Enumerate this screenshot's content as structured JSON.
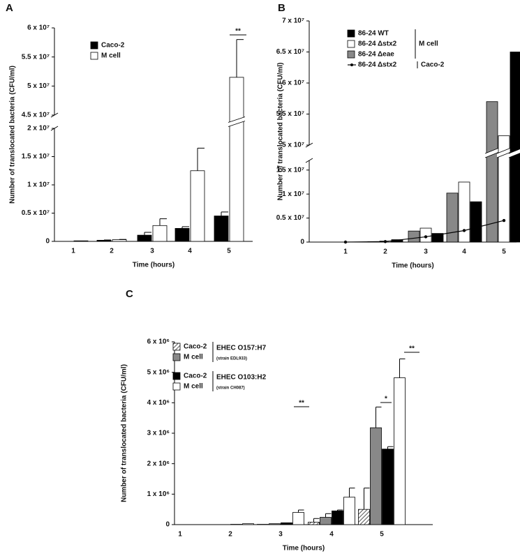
{
  "chart_data": [
    {
      "type": "bar",
      "panel": "A",
      "ylabel": "Number of translocated bacteria (CFU/ml)",
      "xlabel": "Time (hours)",
      "categories": [
        "1",
        "2",
        "3",
        "4",
        "5"
      ],
      "series": [
        {
          "name": "Caco-2",
          "color": "#000000",
          "values": [
            0,
            200000,
            1100000,
            2300000,
            4500000
          ],
          "errors": [
            null,
            50000,
            500000,
            300000,
            700000
          ]
        },
        {
          "name": "M cell",
          "color": "#ffffff",
          "values": [
            100000,
            300000,
            2800000,
            12500000,
            51500000
          ],
          "errors": [
            null,
            50000,
            1200000,
            4000000,
            6500000
          ]
        }
      ],
      "ylim": [
        0,
        60000000
      ],
      "y_break": [
        20000000,
        45000000
      ],
      "yticks": [
        0,
        {
          "value": 5000000,
          "label": "0.5 x 10⁷"
        },
        {
          "value": 10000000,
          "label": "1 x 10⁷"
        },
        {
          "value": 15000000,
          "label": "1.5 x 10⁷"
        },
        {
          "value": 20000000,
          "label": "2 x 10⁷"
        },
        {
          "value": 45000000,
          "label": "4.5 x 10⁷"
        },
        {
          "value": 50000000,
          "label": "5 x 10⁷"
        },
        {
          "value": 55000000,
          "label": "5.5 x 10⁷"
        },
        {
          "value": 60000000,
          "label": "6 x 10⁷"
        }
      ],
      "annotations": [
        "**"
      ]
    },
    {
      "type": "bar",
      "panel": "B",
      "ylabel": "Number of translocated bacteria (CFU/ml)",
      "xlabel": "Time (hours)",
      "categories": [
        "1",
        "2",
        "3",
        "4",
        "5"
      ],
      "series": [
        {
          "name": "86-24 WT",
          "color": "#000000",
          "values": [
            0,
            500000,
            1800000,
            8400000,
            65000000
          ]
        },
        {
          "name": "86-24 Δstx2",
          "color": "#ffffff",
          "values": [
            0,
            200000,
            2900000,
            12500000,
            51500000
          ]
        },
        {
          "name": "86-24 Δeae",
          "color": "#888888",
          "values": [
            0,
            100000,
            2300000,
            10200000,
            57000000
          ]
        },
        {
          "name": "86-24 Δstx2",
          "color": "#000000",
          "series_type": "line",
          "values": [
            0,
            100000,
            1100000,
            2400000,
            4500000
          ]
        }
      ],
      "legend_groups": [
        "M cell",
        "Caco-2"
      ],
      "ylim": [
        0,
        70000000
      ],
      "y_break": [
        17000000,
        50000000
      ],
      "yticks": [
        0,
        {
          "value": 5000000,
          "label": "0.5 x 10⁷"
        },
        {
          "value": 10000000,
          "label": "1 x 10⁷"
        },
        {
          "value": 15000000,
          "label": "1.5 x 10⁷"
        },
        {
          "value": 50000000,
          "label": "5 x 10⁷"
        },
        {
          "value": 55000000,
          "label": "5.5 x 10⁷"
        },
        {
          "value": 60000000,
          "label": "6 x 10⁷"
        },
        {
          "value": 65000000,
          "label": "6.5 x 10⁷"
        },
        {
          "value": 70000000,
          "label": "7 x 10⁷"
        }
      ]
    },
    {
      "type": "bar",
      "panel": "C",
      "ylabel": "Number of translocated bacteria (CFU/ml)",
      "xlabel": "Time (hours)",
      "categories": [
        "1",
        "2",
        "3",
        "4",
        "5"
      ],
      "series": [
        {
          "name": "Caco-2",
          "color": "#ffffff",
          "hatch": true,
          "values": [
            0,
            0,
            10000,
            80000,
            500000
          ],
          "errors": [
            null,
            null,
            null,
            120000,
            700000
          ]
        },
        {
          "name": "M cell",
          "color": "#888888",
          "values": [
            0,
            0,
            30000,
            240000,
            3180000
          ],
          "errors": [
            null,
            null,
            null,
            120000,
            680000
          ]
        },
        {
          "name": "Caco-2",
          "color": "#000000",
          "values": [
            0,
            10000,
            60000,
            450000,
            2480000
          ],
          "errors": [
            null,
            null,
            null,
            30000,
            80000
          ]
        },
        {
          "name": "M cell",
          "color": "#ffffff",
          "values": [
            0,
            30000,
            400000,
            900000,
            4820000
          ],
          "errors": [
            null,
            null,
            80000,
            300000,
            620000
          ]
        }
      ],
      "legend_groups": [
        [
          "EHEC O157:H7",
          "(strain EDL933)"
        ],
        [
          "EHEC O103:H2",
          "(strain CH087)"
        ]
      ],
      "ylim": [
        0,
        6000000
      ],
      "yticks": [
        0,
        {
          "value": 1000000,
          "label": "1 x 10⁶"
        },
        {
          "value": 2000000,
          "label": "2 x 10⁶"
        },
        {
          "value": 3000000,
          "label": "3 x 10⁶"
        },
        {
          "value": 4000000,
          "label": "4 x 10⁶"
        },
        {
          "value": 5000000,
          "label": "5 x 10⁶"
        },
        {
          "value": 6000000,
          "label": "6 x 10⁶"
        }
      ],
      "annotations": [
        "**",
        "*",
        "**"
      ]
    }
  ]
}
